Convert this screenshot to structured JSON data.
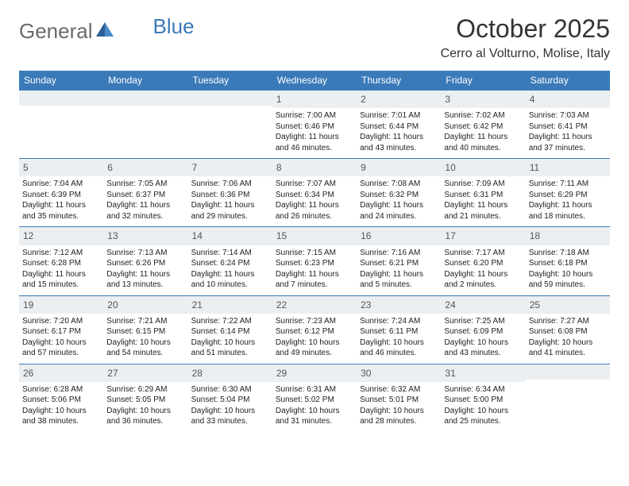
{
  "logo": {
    "text1": "General",
    "text2": "Blue"
  },
  "title": "October 2025",
  "location": "Cerro al Volturno, Molise, Italy",
  "weekdays": [
    "Sunday",
    "Monday",
    "Tuesday",
    "Wednesday",
    "Thursday",
    "Friday",
    "Saturday"
  ],
  "colors": {
    "header_bg": "#3a7ab8",
    "daynum_bg": "#eceff1",
    "border": "#3a7ab8",
    "logo_gray": "#6a6a6a",
    "logo_blue": "#3a7ab8"
  },
  "weeks": [
    [
      {
        "n": "",
        "sr": "",
        "ss": "",
        "dl1": "",
        "dl2": ""
      },
      {
        "n": "",
        "sr": "",
        "ss": "",
        "dl1": "",
        "dl2": ""
      },
      {
        "n": "",
        "sr": "",
        "ss": "",
        "dl1": "",
        "dl2": ""
      },
      {
        "n": "1",
        "sr": "Sunrise: 7:00 AM",
        "ss": "Sunset: 6:46 PM",
        "dl1": "Daylight: 11 hours",
        "dl2": "and 46 minutes."
      },
      {
        "n": "2",
        "sr": "Sunrise: 7:01 AM",
        "ss": "Sunset: 6:44 PM",
        "dl1": "Daylight: 11 hours",
        "dl2": "and 43 minutes."
      },
      {
        "n": "3",
        "sr": "Sunrise: 7:02 AM",
        "ss": "Sunset: 6:42 PM",
        "dl1": "Daylight: 11 hours",
        "dl2": "and 40 minutes."
      },
      {
        "n": "4",
        "sr": "Sunrise: 7:03 AM",
        "ss": "Sunset: 6:41 PM",
        "dl1": "Daylight: 11 hours",
        "dl2": "and 37 minutes."
      }
    ],
    [
      {
        "n": "5",
        "sr": "Sunrise: 7:04 AM",
        "ss": "Sunset: 6:39 PM",
        "dl1": "Daylight: 11 hours",
        "dl2": "and 35 minutes."
      },
      {
        "n": "6",
        "sr": "Sunrise: 7:05 AM",
        "ss": "Sunset: 6:37 PM",
        "dl1": "Daylight: 11 hours",
        "dl2": "and 32 minutes."
      },
      {
        "n": "7",
        "sr": "Sunrise: 7:06 AM",
        "ss": "Sunset: 6:36 PM",
        "dl1": "Daylight: 11 hours",
        "dl2": "and 29 minutes."
      },
      {
        "n": "8",
        "sr": "Sunrise: 7:07 AM",
        "ss": "Sunset: 6:34 PM",
        "dl1": "Daylight: 11 hours",
        "dl2": "and 26 minutes."
      },
      {
        "n": "9",
        "sr": "Sunrise: 7:08 AM",
        "ss": "Sunset: 6:32 PM",
        "dl1": "Daylight: 11 hours",
        "dl2": "and 24 minutes."
      },
      {
        "n": "10",
        "sr": "Sunrise: 7:09 AM",
        "ss": "Sunset: 6:31 PM",
        "dl1": "Daylight: 11 hours",
        "dl2": "and 21 minutes."
      },
      {
        "n": "11",
        "sr": "Sunrise: 7:11 AM",
        "ss": "Sunset: 6:29 PM",
        "dl1": "Daylight: 11 hours",
        "dl2": "and 18 minutes."
      }
    ],
    [
      {
        "n": "12",
        "sr": "Sunrise: 7:12 AM",
        "ss": "Sunset: 6:28 PM",
        "dl1": "Daylight: 11 hours",
        "dl2": "and 15 minutes."
      },
      {
        "n": "13",
        "sr": "Sunrise: 7:13 AM",
        "ss": "Sunset: 6:26 PM",
        "dl1": "Daylight: 11 hours",
        "dl2": "and 13 minutes."
      },
      {
        "n": "14",
        "sr": "Sunrise: 7:14 AM",
        "ss": "Sunset: 6:24 PM",
        "dl1": "Daylight: 11 hours",
        "dl2": "and 10 minutes."
      },
      {
        "n": "15",
        "sr": "Sunrise: 7:15 AM",
        "ss": "Sunset: 6:23 PM",
        "dl1": "Daylight: 11 hours",
        "dl2": "and 7 minutes."
      },
      {
        "n": "16",
        "sr": "Sunrise: 7:16 AM",
        "ss": "Sunset: 6:21 PM",
        "dl1": "Daylight: 11 hours",
        "dl2": "and 5 minutes."
      },
      {
        "n": "17",
        "sr": "Sunrise: 7:17 AM",
        "ss": "Sunset: 6:20 PM",
        "dl1": "Daylight: 11 hours",
        "dl2": "and 2 minutes."
      },
      {
        "n": "18",
        "sr": "Sunrise: 7:18 AM",
        "ss": "Sunset: 6:18 PM",
        "dl1": "Daylight: 10 hours",
        "dl2": "and 59 minutes."
      }
    ],
    [
      {
        "n": "19",
        "sr": "Sunrise: 7:20 AM",
        "ss": "Sunset: 6:17 PM",
        "dl1": "Daylight: 10 hours",
        "dl2": "and 57 minutes."
      },
      {
        "n": "20",
        "sr": "Sunrise: 7:21 AM",
        "ss": "Sunset: 6:15 PM",
        "dl1": "Daylight: 10 hours",
        "dl2": "and 54 minutes."
      },
      {
        "n": "21",
        "sr": "Sunrise: 7:22 AM",
        "ss": "Sunset: 6:14 PM",
        "dl1": "Daylight: 10 hours",
        "dl2": "and 51 minutes."
      },
      {
        "n": "22",
        "sr": "Sunrise: 7:23 AM",
        "ss": "Sunset: 6:12 PM",
        "dl1": "Daylight: 10 hours",
        "dl2": "and 49 minutes."
      },
      {
        "n": "23",
        "sr": "Sunrise: 7:24 AM",
        "ss": "Sunset: 6:11 PM",
        "dl1": "Daylight: 10 hours",
        "dl2": "and 46 minutes."
      },
      {
        "n": "24",
        "sr": "Sunrise: 7:25 AM",
        "ss": "Sunset: 6:09 PM",
        "dl1": "Daylight: 10 hours",
        "dl2": "and 43 minutes."
      },
      {
        "n": "25",
        "sr": "Sunrise: 7:27 AM",
        "ss": "Sunset: 6:08 PM",
        "dl1": "Daylight: 10 hours",
        "dl2": "and 41 minutes."
      }
    ],
    [
      {
        "n": "26",
        "sr": "Sunrise: 6:28 AM",
        "ss": "Sunset: 5:06 PM",
        "dl1": "Daylight: 10 hours",
        "dl2": "and 38 minutes."
      },
      {
        "n": "27",
        "sr": "Sunrise: 6:29 AM",
        "ss": "Sunset: 5:05 PM",
        "dl1": "Daylight: 10 hours",
        "dl2": "and 36 minutes."
      },
      {
        "n": "28",
        "sr": "Sunrise: 6:30 AM",
        "ss": "Sunset: 5:04 PM",
        "dl1": "Daylight: 10 hours",
        "dl2": "and 33 minutes."
      },
      {
        "n": "29",
        "sr": "Sunrise: 6:31 AM",
        "ss": "Sunset: 5:02 PM",
        "dl1": "Daylight: 10 hours",
        "dl2": "and 31 minutes."
      },
      {
        "n": "30",
        "sr": "Sunrise: 6:32 AM",
        "ss": "Sunset: 5:01 PM",
        "dl1": "Daylight: 10 hours",
        "dl2": "and 28 minutes."
      },
      {
        "n": "31",
        "sr": "Sunrise: 6:34 AM",
        "ss": "Sunset: 5:00 PM",
        "dl1": "Daylight: 10 hours",
        "dl2": "and 25 minutes."
      },
      {
        "n": "",
        "sr": "",
        "ss": "",
        "dl1": "",
        "dl2": ""
      }
    ]
  ]
}
